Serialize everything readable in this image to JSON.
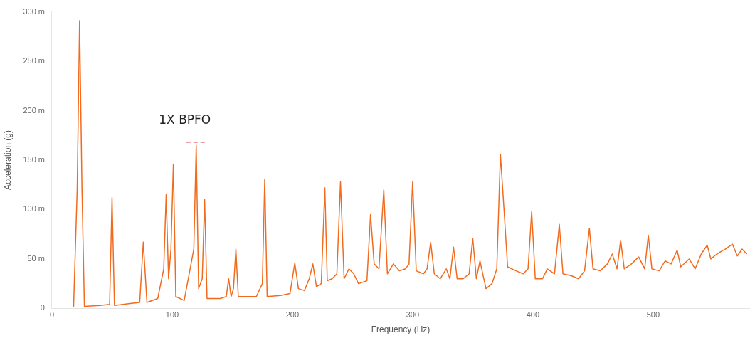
{
  "chart_data": {
    "type": "line",
    "xlabel": "Frequency (Hz)",
    "ylabel": "Acceleration (g)",
    "x": [
      18,
      21,
      23,
      25,
      27,
      40,
      48,
      50,
      52,
      65,
      73,
      76,
      79,
      88,
      93,
      95,
      97,
      99,
      101,
      103,
      110,
      118,
      120,
      122,
      125,
      127,
      129,
      140,
      145,
      147,
      149,
      151,
      153,
      155,
      170,
      175,
      177,
      179,
      190,
      198,
      202,
      205,
      210,
      214,
      217,
      220,
      224,
      227,
      229,
      233,
      237,
      240,
      243,
      247,
      251,
      255,
      262,
      265,
      268,
      272,
      276,
      279,
      284,
      289,
      294,
      297,
      300,
      303,
      309,
      312,
      315,
      318,
      323,
      328,
      331,
      334,
      337,
      342,
      347,
      350,
      353,
      356,
      361,
      366,
      370,
      373,
      376,
      379,
      386,
      392,
      396,
      399,
      402,
      408,
      412,
      418,
      422,
      425,
      432,
      438,
      443,
      447,
      450,
      456,
      462,
      466,
      470,
      473,
      476,
      482,
      488,
      493,
      496,
      499,
      505,
      510,
      515,
      520,
      523,
      530,
      535,
      540,
      545,
      548,
      553,
      560,
      566,
      570,
      574,
      578
    ],
    "series": [
      {
        "color": "#f26b1d",
        "values": [
          1,
          120,
          291,
          120,
          2,
          3,
          4,
          112,
          3,
          5,
          6,
          67,
          6,
          10,
          40,
          115,
          30,
          60,
          146,
          12,
          8,
          60,
          165,
          20,
          30,
          110,
          10,
          10,
          12,
          30,
          12,
          20,
          60,
          12,
          12,
          25,
          131,
          12,
          13,
          15,
          46,
          20,
          18,
          30,
          45,
          22,
          25,
          122,
          28,
          30,
          35,
          128,
          30,
          40,
          35,
          25,
          28,
          95,
          45,
          40,
          120,
          35,
          45,
          38,
          40,
          45,
          128,
          38,
          35,
          40,
          67,
          35,
          30,
          40,
          30,
          62,
          30,
          30,
          35,
          71,
          30,
          48,
          20,
          25,
          40,
          156,
          100,
          42,
          38,
          35,
          40,
          98,
          30,
          30,
          40,
          35,
          85,
          35,
          33,
          30,
          38,
          81,
          40,
          38,
          45,
          55,
          40,
          69,
          40,
          45,
          52,
          40,
          74,
          40,
          38,
          48,
          45,
          59,
          42,
          50,
          40,
          55,
          64,
          50,
          55,
          60,
          65,
          53,
          60,
          55
        ]
      }
    ],
    "xlim": [
      0,
      580
    ],
    "xticks": [
      0,
      100,
      200,
      300,
      400,
      500
    ],
    "ylim": [
      0,
      300
    ],
    "yticks": [
      0,
      {
        "value": 50,
        "label": "50 m"
      },
      {
        "value": 100,
        "label": "100 m"
      },
      {
        "value": 150,
        "label": "150 m"
      },
      {
        "value": 200,
        "label": "200 m"
      },
      {
        "value": 250,
        "label": "250 m"
      },
      {
        "value": 300,
        "label": "300 m"
      }
    ],
    "annotations": [
      {
        "text": "1X BPFO",
        "x": 120,
        "y": 165
      }
    ],
    "grid": false,
    "legend": false,
    "marker": "none",
    "line_style": "solid"
  }
}
